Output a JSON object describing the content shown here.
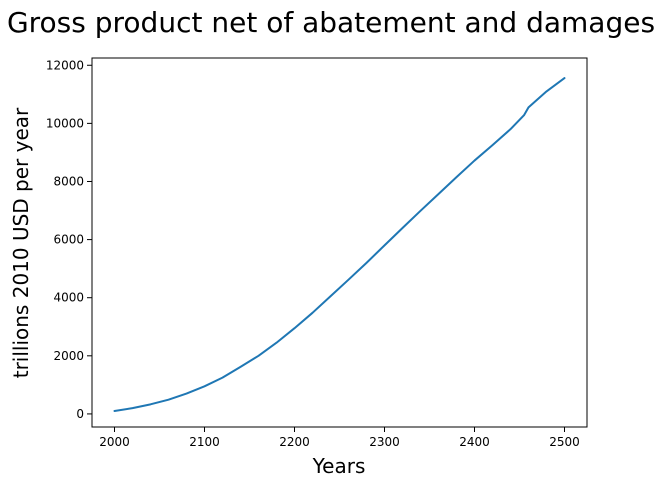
{
  "chart_data": {
    "type": "line",
    "title": "Gross product net of abatement and damages",
    "xlabel": "Years",
    "ylabel": "trillions 2010 USD per year",
    "xlim": [
      1975,
      2525
    ],
    "ylim": [
      -450,
      12250
    ],
    "x_ticks": [
      2000,
      2100,
      2200,
      2300,
      2400,
      2500
    ],
    "y_ticks": [
      0,
      2000,
      4000,
      6000,
      8000,
      10000,
      12000
    ],
    "grid": false,
    "series": [
      {
        "color": "#1f77b4",
        "x": [
          2000,
          2020,
          2040,
          2060,
          2080,
          2100,
          2120,
          2140,
          2160,
          2180,
          2200,
          2220,
          2240,
          2260,
          2280,
          2300,
          2320,
          2340,
          2360,
          2380,
          2400,
          2420,
          2440,
          2455,
          2460,
          2480,
          2500
        ],
        "y": [
          100,
          200,
          330,
          490,
          700,
          950,
          1250,
          1620,
          2000,
          2450,
          2950,
          3480,
          4050,
          4620,
          5200,
          5800,
          6400,
          6990,
          7570,
          8150,
          8720,
          9250,
          9800,
          10280,
          10550,
          11100,
          11560
        ]
      }
    ]
  }
}
